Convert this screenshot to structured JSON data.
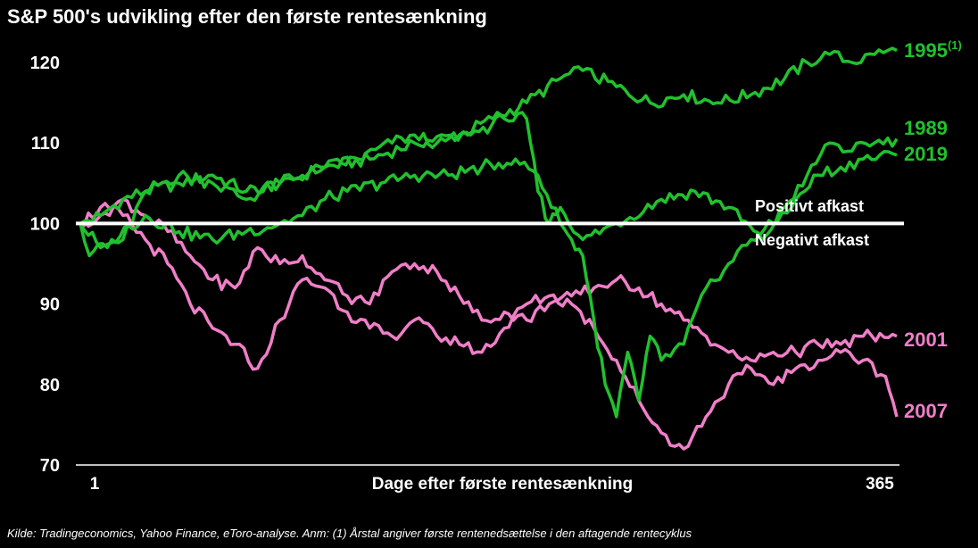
{
  "title": "S&P 500's udvikling efter den første rentesænkning",
  "source": "Kilde: Tradingeconomics, Yahoo Finance, eToro-analyse. Anm: (1) Årstal angiver første rentenedsættelse i den aftagende rentecyklus",
  "colors": {
    "green": "#22c02e",
    "pink": "#f07ec8",
    "baseline": "#ffffff",
    "background": "#000000",
    "text": "#ffffff"
  },
  "chart_data": {
    "type": "line",
    "title": "S&P 500's udvikling efter den første rentesænkning",
    "xlabel": "Dage efter første rentesænkning",
    "ylabel": "",
    "xlim": [
      1,
      365
    ],
    "ylim": [
      70,
      122
    ],
    "x_ticks": [
      "1",
      "365"
    ],
    "y_ticks": [
      70,
      80,
      90,
      100,
      110,
      120
    ],
    "grid": false,
    "legend": "inline labels at line ends (right)",
    "reference_line": {
      "y": 100,
      "above_label": "Positivt afkast",
      "below_label": "Negativt afkast"
    },
    "series": [
      {
        "name": "1995",
        "footnote": "(1)",
        "color": "#22c02e",
        "x": [
          1,
          10,
          20,
          30,
          45,
          60,
          75,
          90,
          110,
          130,
          150,
          170,
          185,
          200,
          215,
          225,
          240,
          255,
          270,
          285,
          300,
          315,
          325,
          335,
          345,
          355,
          365
        ],
        "y": [
          100,
          101,
          103,
          104,
          105,
          106,
          104,
          105,
          107,
          108,
          110,
          111,
          113,
          115,
          118,
          119,
          117,
          115,
          116,
          115,
          116,
          118,
          120,
          121,
          120,
          121,
          121.5
        ]
      },
      {
        "name": "1989",
        "color": "#22c02e",
        "x": [
          1,
          10,
          20,
          30,
          45,
          60,
          75,
          90,
          110,
          125,
          140,
          150,
          160,
          175,
          190,
          200,
          205,
          210,
          215,
          225,
          240,
          260,
          275,
          290,
          305,
          315,
          325,
          335,
          345,
          355,
          365
        ],
        "y": [
          100,
          97,
          98,
          104,
          106,
          105,
          103,
          105,
          107,
          108,
          110,
          111,
          110,
          111,
          113,
          113,
          104,
          100,
          102,
          98,
          100,
          103,
          104,
          102,
          98,
          102,
          106,
          110,
          109,
          110,
          110.5
        ]
      },
      {
        "name": "2019",
        "color": "#22c02e",
        "x": [
          1,
          5,
          15,
          30,
          45,
          60,
          75,
          90,
          100,
          110,
          120,
          135,
          150,
          165,
          180,
          195,
          205,
          215,
          220,
          225,
          230,
          235,
          240,
          245,
          250,
          255,
          260,
          270,
          280,
          290,
          300,
          310,
          320,
          330,
          340,
          350,
          365
        ],
        "y": [
          100,
          96,
          98,
          101,
          99,
          98,
          99,
          100,
          101,
          103,
          104,
          105,
          106,
          106,
          107,
          108,
          106,
          100,
          98,
          96,
          88,
          80,
          76,
          84,
          78,
          86,
          83,
          85,
          92,
          95,
          98,
          100,
          103,
          106,
          107,
          108,
          108.5
        ]
      },
      {
        "name": "2001",
        "color": "#f07ec8",
        "x": [
          1,
          10,
          20,
          30,
          40,
          50,
          60,
          70,
          80,
          90,
          100,
          110,
          120,
          130,
          140,
          150,
          160,
          170,
          180,
          190,
          200,
          210,
          220,
          230,
          240,
          250,
          260,
          270,
          280,
          290,
          300,
          310,
          320,
          330,
          340,
          350,
          365
        ],
        "y": [
          100,
          101,
          103,
          101,
          99,
          96,
          93,
          92,
          97,
          95,
          96,
          93,
          91,
          90,
          94,
          95,
          94,
          91,
          88,
          89,
          88,
          90,
          91,
          92,
          93,
          92,
          90,
          88,
          86,
          84,
          83,
          84,
          84,
          85,
          85,
          86,
          86
        ]
      },
      {
        "name": "2007",
        "color": "#f07ec8",
        "x": [
          1,
          10,
          20,
          30,
          40,
          50,
          60,
          70,
          80,
          90,
          100,
          110,
          120,
          130,
          140,
          150,
          160,
          170,
          180,
          190,
          200,
          210,
          220,
          230,
          240,
          250,
          260,
          270,
          280,
          290,
          300,
          310,
          320,
          330,
          340,
          350,
          360,
          365
        ],
        "y": [
          100,
          102,
          101,
          98,
          95,
          90,
          87,
          85,
          82,
          88,
          93,
          92,
          89,
          87,
          86,
          88,
          86,
          85,
          84,
          87,
          90,
          91,
          90,
          87,
          83,
          78,
          74,
          72,
          76,
          80,
          82,
          80,
          82,
          83,
          84,
          83,
          81,
          76
        ]
      }
    ]
  }
}
